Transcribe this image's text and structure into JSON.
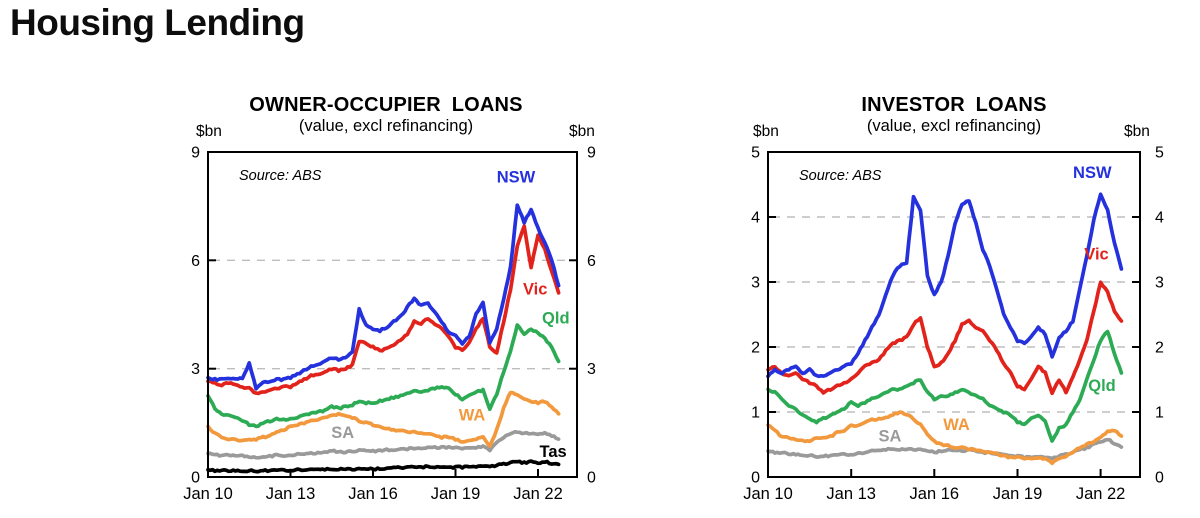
{
  "page": {
    "title": "Housing Lending"
  },
  "chart_data": [
    {
      "id": "owner-occupier",
      "type": "line",
      "title": "OWNER-OCCUPIER LOANS",
      "subtitle": "(value, excl refinancing)",
      "unit": "$bn",
      "source": "Source:  ABS",
      "x_start": 2010.0,
      "x_step": 0.25,
      "x_range": [
        2010.0,
        2023.42
      ],
      "y_range": [
        0,
        9
      ],
      "y_ticks": [
        0,
        3,
        6,
        9
      ],
      "grid_y": [
        3,
        6
      ],
      "x_ticks": [
        {
          "year": 2010,
          "label": "Jan 10"
        },
        {
          "year": 2013,
          "label": "Jan 13"
        },
        {
          "year": 2016,
          "label": "Jan 16"
        },
        {
          "year": 2019,
          "label": "Jan 19"
        },
        {
          "year": 2022,
          "label": "Jan 22"
        }
      ],
      "series": [
        {
          "name": "NSW",
          "color": "#2431dd",
          "label_x": 2021.2,
          "label_y": 8.15,
          "values": [
            2.75,
            2.7,
            2.7,
            2.75,
            2.7,
            2.75,
            3.15,
            2.45,
            2.6,
            2.65,
            2.7,
            2.7,
            2.75,
            2.85,
            2.95,
            3.05,
            3.1,
            3.2,
            3.3,
            3.25,
            3.3,
            3.45,
            4.65,
            4.2,
            4.1,
            4.05,
            4.15,
            4.3,
            4.45,
            4.7,
            4.95,
            4.75,
            4.8,
            4.55,
            4.3,
            4.0,
            3.9,
            3.7,
            3.9,
            4.5,
            4.85,
            3.7,
            4.1,
            4.9,
            5.8,
            7.55,
            7.05,
            7.4,
            6.9,
            6.5,
            6.0,
            5.3
          ]
        },
        {
          "name": "Vic",
          "color": "#e2231b",
          "label_x": 2021.9,
          "label_y": 5.05,
          "values": [
            2.65,
            2.6,
            2.55,
            2.6,
            2.55,
            2.5,
            2.45,
            2.3,
            2.35,
            2.4,
            2.45,
            2.5,
            2.5,
            2.6,
            2.7,
            2.8,
            2.85,
            2.9,
            3.0,
            2.95,
            3.0,
            3.1,
            3.75,
            3.7,
            3.6,
            3.5,
            3.55,
            3.65,
            3.8,
            3.95,
            4.3,
            4.25,
            4.4,
            4.25,
            4.1,
            3.9,
            3.6,
            3.5,
            3.7,
            4.1,
            4.4,
            3.6,
            3.45,
            4.3,
            5.2,
            6.4,
            6.95,
            5.8,
            6.7,
            6.3,
            5.7,
            5.1
          ]
        },
        {
          "name": "Qld",
          "color": "#2dab54",
          "label_x": 2022.65,
          "label_y": 4.25,
          "values": [
            2.25,
            1.9,
            1.75,
            1.7,
            1.65,
            1.55,
            1.45,
            1.4,
            1.5,
            1.55,
            1.6,
            1.6,
            1.6,
            1.65,
            1.7,
            1.75,
            1.8,
            1.85,
            1.95,
            1.9,
            1.95,
            2.0,
            2.1,
            2.05,
            2.05,
            2.1,
            2.15,
            2.2,
            2.25,
            2.3,
            2.4,
            2.35,
            2.4,
            2.45,
            2.5,
            2.45,
            2.3,
            2.15,
            2.25,
            2.35,
            2.4,
            1.9,
            2.3,
            2.9,
            3.5,
            4.2,
            3.95,
            4.1,
            4.0,
            3.85,
            3.6,
            3.2
          ]
        },
        {
          "name": "WA",
          "color": "#f2993e",
          "label_x": 2019.6,
          "label_y": 1.56,
          "values": [
            1.4,
            1.2,
            1.1,
            1.05,
            1.05,
            1.0,
            1.05,
            1.05,
            1.1,
            1.15,
            1.25,
            1.3,
            1.4,
            1.45,
            1.5,
            1.55,
            1.6,
            1.65,
            1.7,
            1.75,
            1.7,
            1.65,
            1.55,
            1.5,
            1.45,
            1.4,
            1.35,
            1.3,
            1.3,
            1.25,
            1.25,
            1.2,
            1.2,
            1.15,
            1.1,
            1.1,
            1.05,
            0.95,
            1.0,
            1.05,
            1.1,
            0.85,
            1.3,
            1.9,
            2.35,
            2.3,
            2.15,
            2.1,
            2.05,
            2.1,
            1.95,
            1.75
          ]
        },
        {
          "name": "SA",
          "color": "#9a9a9a",
          "label_x": 2014.9,
          "label_y": 1.08,
          "values": [
            0.65,
            0.62,
            0.6,
            0.6,
            0.6,
            0.58,
            0.55,
            0.53,
            0.55,
            0.57,
            0.6,
            0.6,
            0.6,
            0.62,
            0.65,
            0.65,
            0.68,
            0.7,
            0.72,
            0.7,
            0.7,
            0.72,
            0.73,
            0.72,
            0.72,
            0.73,
            0.75,
            0.75,
            0.76,
            0.78,
            0.8,
            0.8,
            0.82,
            0.82,
            0.83,
            0.82,
            0.8,
            0.78,
            0.8,
            0.82,
            0.85,
            0.75,
            0.95,
            1.1,
            1.2,
            1.25,
            1.2,
            1.22,
            1.2,
            1.22,
            1.15,
            1.05
          ]
        },
        {
          "name": "Tas",
          "color": "#000000",
          "label_x": 2022.55,
          "label_y": 0.55,
          "values": [
            0.2,
            0.18,
            0.18,
            0.18,
            0.18,
            0.17,
            0.17,
            0.17,
            0.18,
            0.18,
            0.19,
            0.19,
            0.19,
            0.2,
            0.2,
            0.2,
            0.2,
            0.21,
            0.21,
            0.21,
            0.21,
            0.22,
            0.22,
            0.22,
            0.22,
            0.23,
            0.24,
            0.25,
            0.26,
            0.27,
            0.28,
            0.28,
            0.28,
            0.28,
            0.28,
            0.28,
            0.27,
            0.27,
            0.28,
            0.3,
            0.3,
            0.28,
            0.32,
            0.36,
            0.4,
            0.42,
            0.4,
            0.42,
            0.4,
            0.42,
            0.38,
            0.35
          ]
        }
      ]
    },
    {
      "id": "investor",
      "type": "line",
      "title": "INVESTOR LOANS",
      "subtitle": "(value, excl refinancing)",
      "unit": "$bn",
      "source": "Source:  ABS",
      "x_start": 2010.0,
      "x_step": 0.25,
      "x_range": [
        2010.0,
        2023.42
      ],
      "y_range": [
        0,
        5
      ],
      "y_ticks": [
        0,
        1,
        2,
        3,
        4,
        5
      ],
      "grid_y": [
        1,
        2,
        3,
        4
      ],
      "x_ticks": [
        {
          "year": 2010,
          "label": "Jan 10"
        },
        {
          "year": 2013,
          "label": "Jan 13"
        },
        {
          "year": 2016,
          "label": "Jan 16"
        },
        {
          "year": 2019,
          "label": "Jan 19"
        },
        {
          "year": 2022,
          "label": "Jan 22"
        }
      ],
      "series": [
        {
          "name": "NSW",
          "color": "#2431dd",
          "label_x": 2021.7,
          "label_y": 4.6,
          "values": [
            1.55,
            1.65,
            1.6,
            1.65,
            1.7,
            1.6,
            1.65,
            1.55,
            1.55,
            1.6,
            1.65,
            1.7,
            1.75,
            1.9,
            2.1,
            2.3,
            2.5,
            2.8,
            3.1,
            3.25,
            3.3,
            4.3,
            4.1,
            3.1,
            2.8,
            3.0,
            3.4,
            3.9,
            4.2,
            4.25,
            3.9,
            3.5,
            3.25,
            2.9,
            2.5,
            2.3,
            2.1,
            2.05,
            2.15,
            2.3,
            2.2,
            1.85,
            2.15,
            2.25,
            2.4,
            2.9,
            3.4,
            3.95,
            4.35,
            4.1,
            3.6,
            3.2
          ]
        },
        {
          "name": "Vic",
          "color": "#e2231b",
          "label_x": 2021.85,
          "label_y": 3.35,
          "values": [
            1.65,
            1.7,
            1.6,
            1.55,
            1.6,
            1.5,
            1.45,
            1.4,
            1.3,
            1.35,
            1.4,
            1.45,
            1.5,
            1.6,
            1.7,
            1.75,
            1.8,
            1.95,
            2.05,
            2.1,
            2.15,
            2.35,
            2.45,
            2.0,
            1.7,
            1.75,
            1.9,
            2.1,
            2.35,
            2.4,
            2.3,
            2.25,
            2.1,
            1.95,
            1.75,
            1.6,
            1.4,
            1.35,
            1.5,
            1.7,
            1.6,
            1.3,
            1.5,
            1.3,
            1.55,
            1.8,
            2.1,
            2.55,
            3.0,
            2.85,
            2.55,
            2.4
          ]
        },
        {
          "name": "Qld",
          "color": "#2dab54",
          "label_x": 2022.05,
          "label_y": 1.32,
          "values": [
            1.35,
            1.3,
            1.2,
            1.1,
            1.05,
            0.95,
            0.9,
            0.85,
            0.9,
            0.95,
            1.0,
            1.05,
            1.15,
            1.1,
            1.15,
            1.2,
            1.25,
            1.3,
            1.35,
            1.35,
            1.4,
            1.45,
            1.5,
            1.3,
            1.2,
            1.25,
            1.25,
            1.3,
            1.35,
            1.3,
            1.25,
            1.2,
            1.1,
            1.05,
            1.0,
            0.95,
            0.85,
            0.8,
            0.9,
            0.95,
            0.85,
            0.55,
            0.75,
            0.8,
            1.0,
            1.2,
            1.5,
            1.8,
            2.1,
            2.25,
            1.9,
            1.6
          ]
        },
        {
          "name": "WA",
          "color": "#f2993e",
          "label_x": 2016.8,
          "label_y": 0.72,
          "values": [
            0.8,
            0.72,
            0.62,
            0.6,
            0.58,
            0.55,
            0.55,
            0.6,
            0.6,
            0.62,
            0.68,
            0.72,
            0.8,
            0.78,
            0.85,
            0.88,
            0.9,
            0.92,
            0.95,
            1.0,
            0.97,
            0.9,
            0.8,
            0.65,
            0.55,
            0.5,
            0.48,
            0.45,
            0.45,
            0.43,
            0.42,
            0.4,
            0.38,
            0.36,
            0.33,
            0.3,
            0.3,
            0.28,
            0.28,
            0.3,
            0.28,
            0.22,
            0.28,
            0.32,
            0.38,
            0.45,
            0.5,
            0.55,
            0.62,
            0.7,
            0.72,
            0.63
          ]
        },
        {
          "name": "SA",
          "color": "#9a9a9a",
          "label_x": 2014.4,
          "label_y": 0.55,
          "values": [
            0.4,
            0.38,
            0.37,
            0.36,
            0.35,
            0.34,
            0.33,
            0.32,
            0.32,
            0.33,
            0.34,
            0.35,
            0.35,
            0.36,
            0.38,
            0.4,
            0.4,
            0.42,
            0.43,
            0.42,
            0.42,
            0.43,
            0.42,
            0.4,
            0.38,
            0.4,
            0.42,
            0.4,
            0.4,
            0.42,
            0.4,
            0.38,
            0.37,
            0.36,
            0.35,
            0.33,
            0.32,
            0.3,
            0.3,
            0.32,
            0.3,
            0.28,
            0.32,
            0.35,
            0.38,
            0.42,
            0.45,
            0.5,
            0.55,
            0.58,
            0.52,
            0.46
          ]
        }
      ]
    }
  ]
}
